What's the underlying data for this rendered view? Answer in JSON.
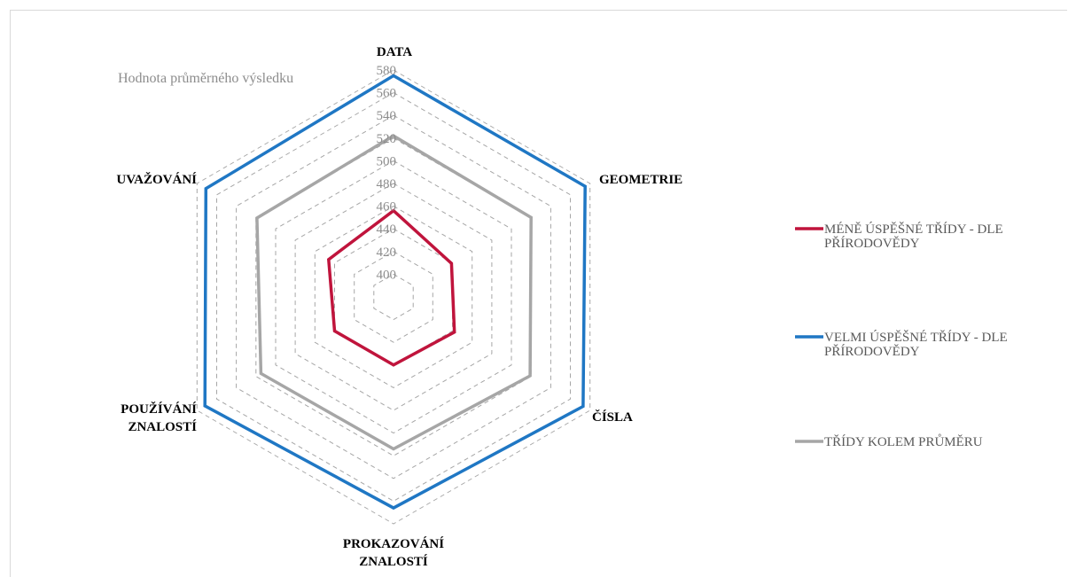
{
  "chart_data": {
    "type": "radar",
    "scale_title": "Hodnota průměrného výsledku",
    "axes": [
      {
        "key": "data",
        "label_lines": [
          "DATA"
        ]
      },
      {
        "key": "geometrie",
        "label_lines": [
          "GEOMETRIE"
        ]
      },
      {
        "key": "cisla",
        "label_lines": [
          "ČÍSLA"
        ]
      },
      {
        "key": "prokazovani",
        "label_lines": [
          "PROKAZOVÁNÍ",
          "ZNALOSTÍ"
        ]
      },
      {
        "key": "pouzivani",
        "label_lines": [
          "POUŽÍVÁNÍ",
          "ZNALOSTÍ"
        ]
      },
      {
        "key": "uvazovani",
        "label_lines": [
          "UVAŽOVÁNÍ"
        ]
      }
    ],
    "rlim": [
      380,
      580
    ],
    "ticks": [
      400,
      420,
      440,
      460,
      480,
      500,
      520,
      540,
      560,
      580
    ],
    "grid": true,
    "legend_position": "right",
    "series": [
      {
        "name_lines": [
          "MÉNĚ ÚSPĚŠNÉ TŘÍDY - DLE",
          "PŘÍRODOVĚDY"
        ],
        "color": "#c0143c",
        "values": [
          456,
          439,
          442,
          440,
          440,
          446
        ]
      },
      {
        "name_lines": [
          "VELMI ÚSPĚŠNÉ TŘÍDY - DLE",
          "PŘÍRODOVĚDY"
        ],
        "color": "#1f77c4",
        "values": [
          575,
          575,
          573,
          566,
          572,
          571
        ]
      },
      {
        "name_lines": [
          "TŘÍDY KOLEM PRŮMĚRU"
        ],
        "color": "#a6a6a6",
        "values": [
          522,
          520,
          519,
          514,
          515,
          519
        ]
      }
    ]
  }
}
